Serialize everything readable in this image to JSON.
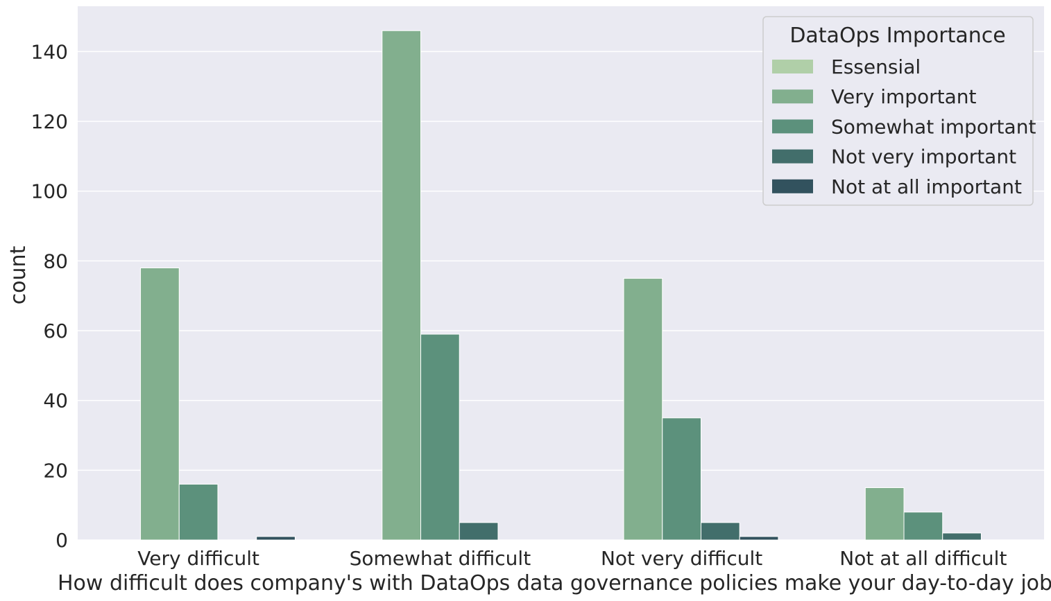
{
  "chart_data": {
    "type": "bar",
    "xlabel": "How difficult does company's with DataOps data governance policies make your day-to-day job?",
    "ylabel": "count",
    "categories": [
      "Very difficult",
      "Somewhat difficult",
      "Not very difficult",
      "Not at all difficult"
    ],
    "series": [
      {
        "name": "Essensial",
        "color": "#b0cfa8",
        "values": [
          0,
          0,
          0,
          0
        ]
      },
      {
        "name": "Very important",
        "color": "#82af8e",
        "values": [
          78,
          146,
          75,
          15
        ]
      },
      {
        "name": "Somewhat important",
        "color": "#5c917c",
        "values": [
          16,
          59,
          35,
          8
        ]
      },
      {
        "name": "Not very important",
        "color": "#426e6b",
        "values": [
          0,
          5,
          5,
          2
        ]
      },
      {
        "name": "Not at all important",
        "color": "#32525e",
        "values": [
          1,
          0,
          1,
          0
        ]
      }
    ],
    "ylim": [
      0,
      153
    ],
    "yticks": [
      0,
      20,
      40,
      60,
      80,
      100,
      120,
      140
    ],
    "grid": true,
    "legend": {
      "title": "DataOps Importance",
      "placement": "top-right"
    },
    "background": "#eaeaf2"
  }
}
